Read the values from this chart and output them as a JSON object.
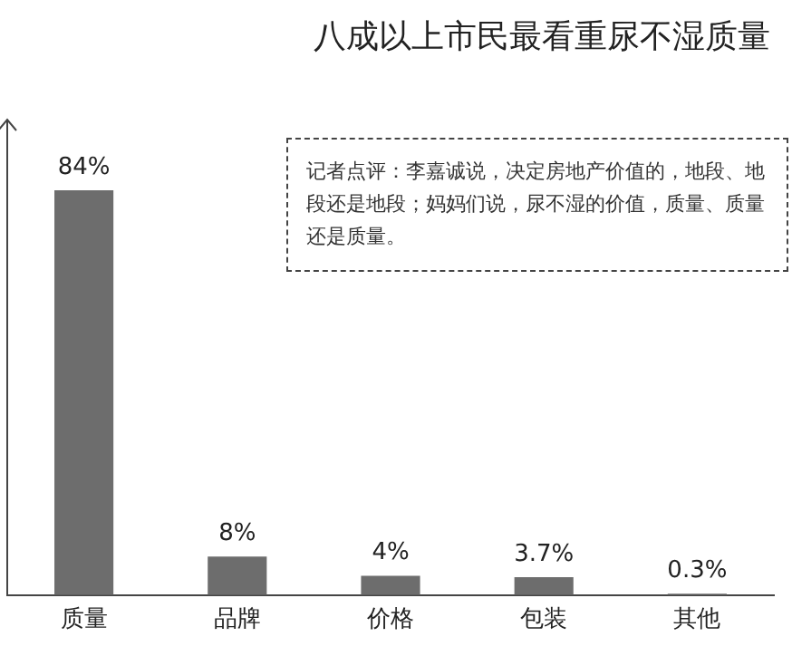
{
  "chart_data": {
    "type": "bar",
    "title": "八成以上市民最看重尿不湿质量",
    "categories": [
      "质量",
      "品牌",
      "价格",
      "包装",
      "其他"
    ],
    "values": [
      84,
      8,
      4,
      3.7,
      0.3
    ],
    "value_labels": [
      "84%",
      "8%",
      "4%",
      "3.7%",
      "0.3%"
    ],
    "color": "#6d6d6d",
    "annotations": [
      "记者点评：李嘉诚说，决定房地产价值的，地段、地段还是地段；妈妈们说，尿不湿的价值，质量、质量还是质量。"
    ],
    "grid": false,
    "legend": false,
    "tick_labels": "x"
  }
}
